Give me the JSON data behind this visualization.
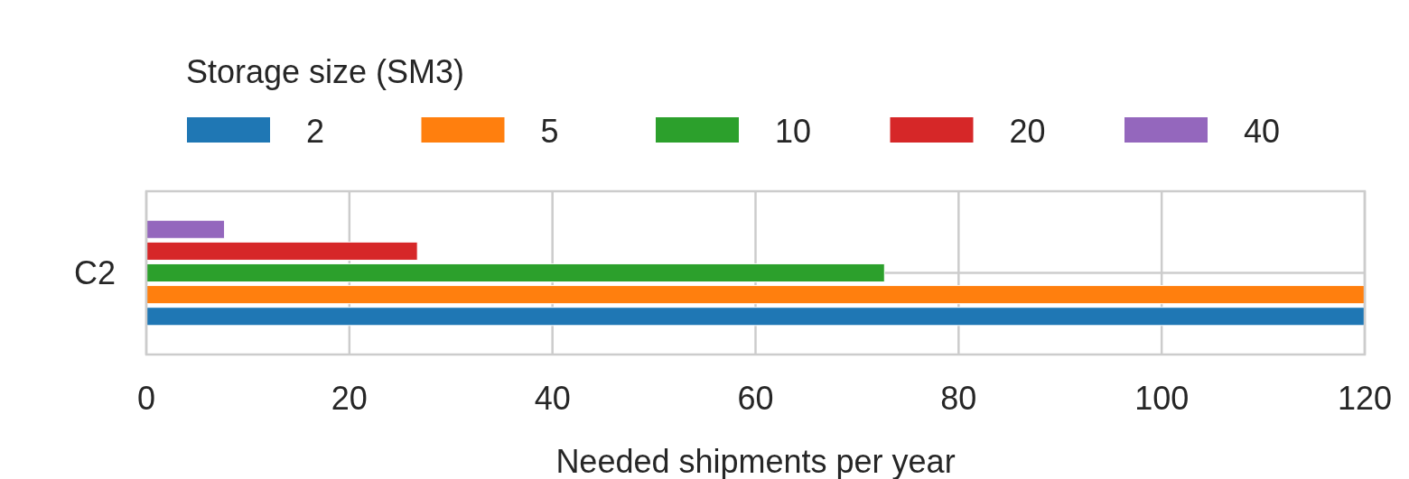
{
  "chart_data": {
    "type": "bar",
    "orientation": "horizontal",
    "categories": [
      "C2"
    ],
    "xlabel": "Needed shipments per year",
    "legend_title": "Storage size (SM3)",
    "legend": "top",
    "grid": true,
    "xlim": [
      0,
      120
    ],
    "xticks": [
      0,
      20,
      40,
      60,
      80,
      100,
      120
    ],
    "series": [
      {
        "name": "2",
        "color": "#1f77b4",
        "values": [
          120
        ]
      },
      {
        "name": "5",
        "color": "#ff7f0e",
        "values": [
          120
        ]
      },
      {
        "name": "10",
        "color": "#2ca02c",
        "values": [
          72.7
        ]
      },
      {
        "name": "20",
        "color": "#d62728",
        "values": [
          26.7
        ]
      },
      {
        "name": "40",
        "color": "#9467bd",
        "values": [
          7.7
        ]
      }
    ]
  }
}
